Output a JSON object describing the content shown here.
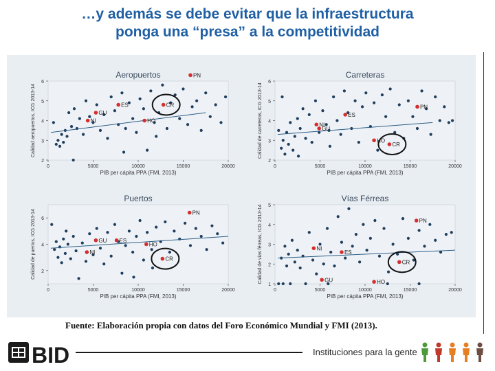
{
  "slide": {
    "title_line1": "…y además se debe evitar que la infraestructura",
    "title_line2": "ponga una “presa” a la competitividad",
    "source": "Fuente: Elaboración propia con datos del Foro Económico Mundial y FMI (2013).",
    "footer": {
      "logo_text": "BID",
      "tagline": "Instituciones para la gente"
    }
  },
  "colors": {
    "title": "#1f5fa3",
    "point": "#1f3d5c",
    "highlight": "#d32f2f",
    "fit": "#2b5d86",
    "panel": "#e9eef3"
  },
  "chart_data": [
    {
      "type": "scatter",
      "title": "Aeropuertos",
      "xlabel": "PIB per cápita PPA (FMI, 2013)",
      "ylabel": "Calidad aeropuertos, ICG 2013-14",
      "xlim": [
        0,
        20000
      ],
      "ylim": [
        2,
        6
      ],
      "xticks": [
        "0",
        "5000",
        "10000",
        "15000",
        "20000"
      ],
      "yticks": [
        "2",
        "3",
        "4",
        "5",
        "6"
      ],
      "fit_line": [
        [
          300,
          3.4
        ],
        [
          17500,
          4.4
        ]
      ],
      "highlighted": [
        {
          "label": "PN",
          "x": 15800,
          "y": 6.3
        },
        {
          "label": "ES",
          "x": 7800,
          "y": 4.8
        },
        {
          "label": "CR",
          "x": 12800,
          "y": 4.8
        },
        {
          "label": "GU",
          "x": 5300,
          "y": 4.4
        },
        {
          "label": "NI",
          "x": 4400,
          "y": 4.0
        },
        {
          "label": "HO",
          "x": 10700,
          "y": 4.0
        }
      ],
      "circled": "CR",
      "points": [
        [
          600,
          3.9
        ],
        [
          900,
          2.8
        ],
        [
          1100,
          3.0
        ],
        [
          1300,
          2.7
        ],
        [
          1500,
          3.3
        ],
        [
          1700,
          2.9
        ],
        [
          1900,
          3.5
        ],
        [
          2100,
          3.2
        ],
        [
          2300,
          4.4
        ],
        [
          2600,
          3.7
        ],
        [
          2900,
          4.6
        ],
        [
          3200,
          3.6
        ],
        [
          3500,
          4.1
        ],
        [
          3900,
          3.3
        ],
        [
          4200,
          5.0
        ],
        [
          4600,
          4.2
        ],
        [
          5000,
          3.9
        ],
        [
          5400,
          4.8
        ],
        [
          5800,
          3.5
        ],
        [
          6200,
          4.3
        ],
        [
          6600,
          3.1
        ],
        [
          7000,
          5.2
        ],
        [
          7400,
          4.5
        ],
        [
          7800,
          3.8
        ],
        [
          8200,
          5.4
        ],
        [
          8600,
          3.6
        ],
        [
          9000,
          4.9
        ],
        [
          9400,
          4.1
        ],
        [
          9800,
          3.4
        ],
        [
          10200,
          5.1
        ],
        [
          10600,
          4.6
        ],
        [
          11000,
          2.5
        ],
        [
          11400,
          5.5
        ],
        [
          11800,
          3.9
        ],
        [
          12300,
          4.4
        ],
        [
          12700,
          5.8
        ],
        [
          13200,
          3.6
        ],
        [
          13600,
          4.9
        ],
        [
          14100,
          5.3
        ],
        [
          14600,
          4.1
        ],
        [
          15000,
          5.6
        ],
        [
          15500,
          3.8
        ],
        [
          16000,
          4.7
        ],
        [
          16500,
          5.0
        ],
        [
          17000,
          3.5
        ],
        [
          17500,
          5.4
        ],
        [
          18000,
          4.2
        ],
        [
          18600,
          4.8
        ],
        [
          19200,
          3.9
        ],
        [
          19700,
          5.2
        ],
        [
          2800,
          2.0
        ],
        [
          8400,
          2.4
        ],
        [
          12000,
          3.2
        ]
      ]
    },
    {
      "type": "scatter",
      "title": "Carreteras",
      "xlabel": "PIB per cápita PPA (FMI, 2013)",
      "ylabel": "Calidad de carreteras, ICG 2013-14",
      "xlim": [
        0,
        20000
      ],
      "ylim": [
        2,
        6
      ],
      "xticks": [
        "0",
        "5000",
        "10000",
        "15000",
        "20000"
      ],
      "yticks": [
        "2",
        "3",
        "4",
        "5",
        "6"
      ],
      "fit_line": [
        [
          300,
          3.3
        ],
        [
          17500,
          3.9
        ]
      ],
      "highlighted": [
        {
          "label": "PN",
          "x": 15800,
          "y": 4.7
        },
        {
          "label": "ES",
          "x": 7800,
          "y": 4.3
        },
        {
          "label": "NI",
          "x": 4600,
          "y": 3.8
        },
        {
          "label": "GU",
          "x": 4900,
          "y": 3.6
        },
        {
          "label": "HO",
          "x": 11000,
          "y": 3.0
        },
        {
          "label": "CR",
          "x": 12700,
          "y": 2.8
        }
      ],
      "circled": "CR",
      "points": [
        [
          400,
          3.5
        ],
        [
          700,
          2.6
        ],
        [
          900,
          3.0
        ],
        [
          1100,
          2.3
        ],
        [
          1300,
          3.4
        ],
        [
          1500,
          2.8
        ],
        [
          1700,
          3.9
        ],
        [
          2000,
          2.5
        ],
        [
          2200,
          3.2
        ],
        [
          2500,
          4.1
        ],
        [
          2800,
          3.6
        ],
        [
          3100,
          4.6
        ],
        [
          3400,
          3.1
        ],
        [
          3800,
          4.3
        ],
        [
          4100,
          2.9
        ],
        [
          4500,
          5.0
        ],
        [
          4900,
          3.4
        ],
        [
          5300,
          4.5
        ],
        [
          5700,
          3.8
        ],
        [
          6100,
          2.7
        ],
        [
          6500,
          5.2
        ],
        [
          6900,
          4.0
        ],
        [
          7300,
          3.3
        ],
        [
          7700,
          5.5
        ],
        [
          8100,
          4.4
        ],
        [
          8500,
          3.6
        ],
        [
          8900,
          5.0
        ],
        [
          9300,
          2.9
        ],
        [
          9700,
          4.7
        ],
        [
          10100,
          5.4
        ],
        [
          10600,
          3.7
        ],
        [
          11000,
          4.9
        ],
        [
          11400,
          2.5
        ],
        [
          11900,
          5.3
        ],
        [
          12300,
          4.2
        ],
        [
          12800,
          5.6
        ],
        [
          13300,
          3.4
        ],
        [
          13800,
          4.8
        ],
        [
          14300,
          3.1
        ],
        [
          14800,
          5.0
        ],
        [
          15300,
          4.2
        ],
        [
          15800,
          3.6
        ],
        [
          16300,
          5.5
        ],
        [
          16800,
          4.6
        ],
        [
          17300,
          3.3
        ],
        [
          17800,
          5.2
        ],
        [
          18300,
          4.0
        ],
        [
          18800,
          4.7
        ],
        [
          19300,
          3.9
        ],
        [
          19700,
          4.0
        ],
        [
          800,
          5.2
        ],
        [
          2600,
          2.2
        ],
        [
          6000,
          3.5
        ]
      ]
    },
    {
      "type": "scatter",
      "title": "Puertos",
      "xlabel": "PIB per cápita PPA (FMI, 2013)",
      "ylabel": "Calidad de puertos, ICG 2013-14",
      "xlim": [
        0,
        20000
      ],
      "ylim": [
        1,
        7
      ],
      "xticks": [
        "0",
        "5000",
        "10000",
        "15000",
        "20000"
      ],
      "yticks": [
        "2",
        "4",
        "6"
      ],
      "fit_line": [
        [
          300,
          3.7
        ],
        [
          20000,
          4.6
        ]
      ],
      "highlighted": [
        {
          "label": "PN",
          "x": 15700,
          "y": 6.4
        },
        {
          "label": "GU",
          "x": 5300,
          "y": 4.3
        },
        {
          "label": "ES",
          "x": 7600,
          "y": 4.3
        },
        {
          "label": "HO",
          "x": 10900,
          "y": 4.0
        },
        {
          "label": "NI",
          "x": 4300,
          "y": 3.4
        },
        {
          "label": "CR",
          "x": 12700,
          "y": 2.9
        }
      ],
      "circled": "CR",
      "points": [
        [
          400,
          5.5
        ],
        [
          700,
          3.6
        ],
        [
          900,
          4.2
        ],
        [
          1100,
          3.0
        ],
        [
          1300,
          3.8
        ],
        [
          1500,
          2.6
        ],
        [
          1700,
          4.4
        ],
        [
          1900,
          3.3
        ],
        [
          2200,
          4.0
        ],
        [
          2500,
          2.9
        ],
        [
          2800,
          4.6
        ],
        [
          3100,
          3.5
        ],
        [
          3400,
          1.4
        ],
        [
          3800,
          4.1
        ],
        [
          4200,
          2.7
        ],
        [
          4600,
          4.8
        ],
        [
          5000,
          3.2
        ],
        [
          5400,
          5.2
        ],
        [
          5800,
          3.7
        ],
        [
          6200,
          2.5
        ],
        [
          6600,
          4.9
        ],
        [
          7000,
          3.1
        ],
        [
          7400,
          5.5
        ],
        [
          7800,
          4.2
        ],
        [
          8200,
          1.8
        ],
        [
          8600,
          3.9
        ],
        [
          9000,
          5.0
        ],
        [
          9400,
          3.4
        ],
        [
          9800,
          4.6
        ],
        [
          10200,
          5.8
        ],
        [
          10600,
          2.8
        ],
        [
          11000,
          4.9
        ],
        [
          11500,
          3.6
        ],
        [
          12000,
          5.3
        ],
        [
          12500,
          4.2
        ],
        [
          13000,
          5.7
        ],
        [
          13500,
          3.4
        ],
        [
          14000,
          5.0
        ],
        [
          14600,
          4.4
        ],
        [
          15200,
          5.6
        ],
        [
          15800,
          3.9
        ],
        [
          16400,
          5.2
        ],
        [
          17000,
          4.6
        ],
        [
          17600,
          3.6
        ],
        [
          18200,
          5.4
        ],
        [
          18800,
          4.8
        ],
        [
          19400,
          4.1
        ],
        [
          2000,
          5.0
        ],
        [
          9500,
          1.5
        ],
        [
          11600,
          2.2
        ]
      ]
    },
    {
      "type": "scatter",
      "title": "Vías Férreas",
      "xlabel": "PIB per cápita PPA (FMI, 2013)",
      "ylabel": "Calidad de vías férreas, ICG 2013-14",
      "xlim": [
        0,
        20000
      ],
      "ylim": [
        1,
        5
      ],
      "xticks": [
        "0",
        "5000",
        "10000",
        "15000",
        "20000"
      ],
      "yticks": [
        "1",
        "2",
        "3",
        "4",
        "5"
      ],
      "fit_line": [
        [
          300,
          2.3
        ],
        [
          20000,
          2.7
        ]
      ],
      "highlighted": [
        {
          "label": "PN",
          "x": 15700,
          "y": 4.2
        },
        {
          "label": "NI",
          "x": 4300,
          "y": 2.8
        },
        {
          "label": "ES",
          "x": 7400,
          "y": 2.6
        },
        {
          "label": "CR",
          "x": 13800,
          "y": 2.1
        },
        {
          "label": "GU",
          "x": 5200,
          "y": 1.2
        },
        {
          "label": "HO",
          "x": 11000,
          "y": 1.1
        }
      ],
      "circled": "CR",
      "points": [
        [
          400,
          1.0
        ],
        [
          700,
          2.3
        ],
        [
          900,
          1.0
        ],
        [
          1100,
          2.9
        ],
        [
          1300,
          1.9
        ],
        [
          1500,
          2.5
        ],
        [
          1700,
          1.0
        ],
        [
          1900,
          3.2
        ],
        [
          2200,
          2.1
        ],
        [
          2500,
          2.7
        ],
        [
          2800,
          1.8
        ],
        [
          3100,
          2.4
        ],
        [
          3400,
          1.0
        ],
        [
          3800,
          3.6
        ],
        [
          4200,
          2.2
        ],
        [
          4600,
          1.5
        ],
        [
          5000,
          3.0
        ],
        [
          5400,
          2.0
        ],
        [
          5800,
          3.8
        ],
        [
          6200,
          2.6
        ],
        [
          6600,
          1.9
        ],
        [
          7000,
          4.4
        ],
        [
          7400,
          3.1
        ],
        [
          7800,
          2.3
        ],
        [
          8200,
          4.8
        ],
        [
          8600,
          2.9
        ],
        [
          9000,
          3.5
        ],
        [
          9400,
          2.1
        ],
        [
          9800,
          4.0
        ],
        [
          10200,
          2.7
        ],
        [
          10600,
          3.3
        ],
        [
          11100,
          4.2
        ],
        [
          11600,
          2.4
        ],
        [
          12100,
          3.8
        ],
        [
          12600,
          1.6
        ],
        [
          13100,
          3.0
        ],
        [
          13600,
          2.5
        ],
        [
          14200,
          4.3
        ],
        [
          14800,
          3.3
        ],
        [
          15400,
          2.2
        ],
        [
          16000,
          3.7
        ],
        [
          16600,
          2.9
        ],
        [
          17200,
          4.0
        ],
        [
          17800,
          3.2
        ],
        [
          18400,
          2.6
        ],
        [
          19000,
          3.5
        ],
        [
          19600,
          3.6
        ],
        [
          5900,
          1.0
        ],
        [
          12500,
          1.0
        ],
        [
          16000,
          1.0
        ]
      ]
    }
  ]
}
